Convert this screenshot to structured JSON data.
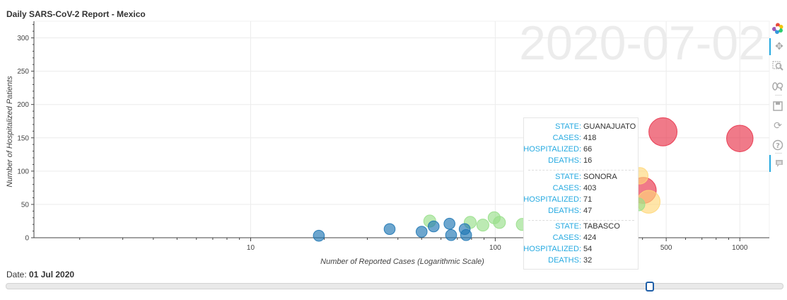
{
  "title": "Daily SARS-CoV-2 Report - Mexico",
  "watermark": "2020-07-02",
  "chart_data": {
    "type": "scatter",
    "title": "Daily SARS-CoV-2 Report - Mexico",
    "xlabel": "Number of Reported Cases (Logarithmic Scale)",
    "ylabel": "Number of Hospitalized Patients",
    "x_scale": "log",
    "xlim": [
      1.3,
      1320
    ],
    "ylim": [
      0,
      325
    ],
    "x_ticks": [
      {
        "value": 10,
        "label": "10"
      },
      {
        "value": 100,
        "label": "100"
      },
      {
        "value": 500,
        "label": "500"
      },
      {
        "value": 1000,
        "label": "1000"
      }
    ],
    "y_ticks": [
      0,
      50,
      100,
      150,
      200,
      250,
      300
    ],
    "grid": true,
    "points": [
      {
        "x": 19,
        "y": 3,
        "deaths": 1,
        "color": "#1f77b4"
      },
      {
        "x": 37,
        "y": 13,
        "deaths": 1,
        "color": "#1f77b4"
      },
      {
        "x": 50,
        "y": 9,
        "deaths": 1,
        "color": "#1f77b4"
      },
      {
        "x": 56,
        "y": 17,
        "deaths": 1,
        "color": "#1f77b4"
      },
      {
        "x": 54,
        "y": 25,
        "deaths": 2,
        "color": "#98df8a"
      },
      {
        "x": 65,
        "y": 21,
        "deaths": 1,
        "color": "#1f77b4"
      },
      {
        "x": 66,
        "y": 4,
        "deaths": 1,
        "color": "#1f77b4"
      },
      {
        "x": 75,
        "y": 13,
        "deaths": 1,
        "color": "#1f77b4"
      },
      {
        "x": 76,
        "y": 4,
        "deaths": 1,
        "color": "#1f77b4"
      },
      {
        "x": 79,
        "y": 23,
        "deaths": 2,
        "color": "#98df8a"
      },
      {
        "x": 89,
        "y": 19,
        "deaths": 2,
        "color": "#98df8a"
      },
      {
        "x": 99,
        "y": 30,
        "deaths": 2,
        "color": "#98df8a"
      },
      {
        "x": 104,
        "y": 23,
        "deaths": 2,
        "color": "#98df8a"
      },
      {
        "x": 129,
        "y": 20,
        "deaths": 2,
        "color": "#98df8a"
      },
      {
        "x": 150,
        "y": 15,
        "deaths": 1,
        "color": "#1f77b4"
      },
      {
        "x": 385,
        "y": 50,
        "deaths": 3,
        "color": "#98df8a"
      },
      {
        "x": 390,
        "y": 93,
        "deaths": 10,
        "color": "#ffd77a"
      },
      {
        "x": 403,
        "y": 71,
        "deaths": 47,
        "color": "#e8334a"
      },
      {
        "x": 424,
        "y": 54,
        "deaths": 32,
        "color": "#ffd77a"
      },
      {
        "x": 485,
        "y": 159,
        "deaths": 60,
        "color": "#e8334a"
      },
      {
        "x": 1000,
        "y": 149,
        "deaths": 50,
        "color": "#e8334a"
      }
    ]
  },
  "tooltip": {
    "entries": [
      {
        "state_label": "STATE:",
        "state": "GUANAJUATO",
        "cases_label": "CASES:",
        "cases": "418",
        "hosp_label": "HOSPITALIZED:",
        "hosp": "66",
        "deaths_label": "DEATHS:",
        "deaths": "16"
      },
      {
        "state_label": "STATE:",
        "state": "SONORA",
        "cases_label": "CASES:",
        "cases": "403",
        "hosp_label": "HOSPITALIZED:",
        "hosp": "71",
        "deaths_label": "DEATHS:",
        "deaths": "47"
      },
      {
        "state_label": "STATE:",
        "state": "TABASCO",
        "cases_label": "CASES:",
        "cases": "424",
        "hosp_label": "HOSPITALIZED:",
        "hosp": "54",
        "deaths_label": "DEATHS:",
        "deaths": "32"
      }
    ]
  },
  "slider": {
    "label": "Date:",
    "value": "01 Jul 2020",
    "position_fraction": 0.828
  },
  "toolbar": {
    "icons": [
      "bokeh-logo-icon",
      "pan-icon",
      "box-zoom-icon",
      "wheel-zoom-icon",
      "save-icon",
      "reset-icon",
      "help-icon",
      "hover-icon"
    ]
  }
}
